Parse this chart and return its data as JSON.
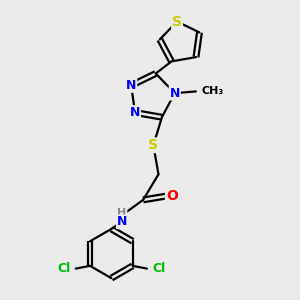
{
  "background_color": "#ebebeb",
  "bond_color": "#000000",
  "bond_width": 1.6,
  "atom_colors": {
    "S": "#cccc00",
    "N": "#0000ff",
    "O": "#ff0000",
    "Cl": "#00bb00",
    "C": "#000000",
    "H": "#888888"
  },
  "font_size": 9,
  "figsize": [
    3.0,
    3.0
  ],
  "dpi": 100
}
